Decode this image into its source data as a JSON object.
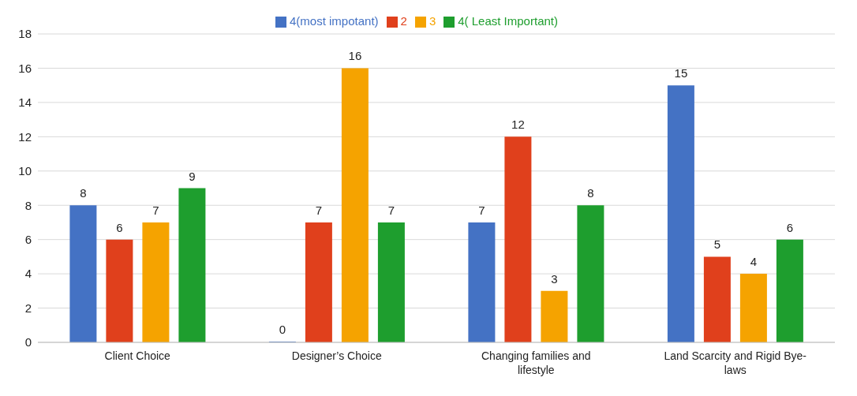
{
  "chart_data": {
    "type": "bar",
    "categories": [
      "Client Choice",
      "Designer’s Choice",
      "Changing families and lifestyle",
      "Land Scarcity and Rigid Bye-laws"
    ],
    "series": [
      {
        "name": "4(most impotant)",
        "color": "#4472c4",
        "values": [
          8,
          0,
          7,
          15
        ]
      },
      {
        "name": "2",
        "color": "#e0401c",
        "values": [
          6,
          7,
          12,
          5
        ]
      },
      {
        "name": "3",
        "color": "#f5a300",
        "values": [
          7,
          16,
          3,
          4
        ]
      },
      {
        "name": "4( Least Important)",
        "color": "#1e9e2e",
        "values": [
          9,
          7,
          8,
          6
        ]
      }
    ],
    "ylim": [
      0,
      18
    ],
    "yticks": [
      0,
      2,
      4,
      6,
      8,
      10,
      12,
      14,
      16,
      18
    ],
    "grid": "y",
    "legend": "top",
    "data_labels": true
  }
}
